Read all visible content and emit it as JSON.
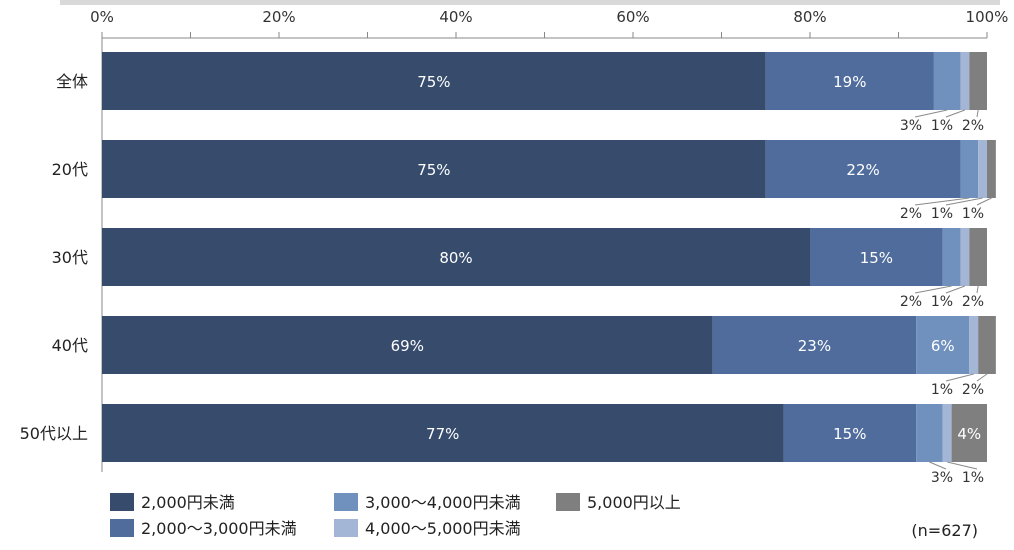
{
  "chart_data": {
    "type": "bar",
    "orientation": "horizontal",
    "stacked": true,
    "categories": [
      "全体",
      "20代",
      "30代",
      "40代",
      "50代以上"
    ],
    "series": [
      {
        "name": "2,000円未満",
        "color": "#374C6D",
        "values": [
          75,
          75,
          80,
          69,
          77
        ],
        "labels": [
          "75%",
          "75%",
          "80%",
          "69%",
          "77%"
        ]
      },
      {
        "name": "2,000～3,000円未満",
        "color": "#4F6C9C",
        "values": [
          19,
          22,
          15,
          23,
          15
        ],
        "labels": [
          "19%",
          "22%",
          "15%",
          "23%",
          "15%"
        ]
      },
      {
        "name": "3,000～4,000円未満",
        "color": "#7090BE",
        "values": [
          3,
          2,
          2,
          6,
          3
        ],
        "labels": [
          "3%",
          "2%",
          "2%",
          "6%",
          "3%"
        ]
      },
      {
        "name": "4,000～5,000円未満",
        "color": "#A4B6D6",
        "values": [
          1,
          1,
          1,
          1,
          1
        ],
        "labels": [
          "1%",
          "1%",
          "1%",
          "1%",
          "1%"
        ]
      },
      {
        "name": "5,000円以上",
        "color": "#7F7F7F",
        "values": [
          2,
          1,
          2,
          2,
          4
        ],
        "labels": [
          "2%",
          "1%",
          "2%",
          "2%",
          "4%"
        ]
      }
    ],
    "xlim": [
      0,
      100
    ],
    "x_ticks": [
      "0%",
      "20%",
      "40%",
      "60%",
      "80%",
      "100%"
    ],
    "legend_position": "bottom-left",
    "note": "(n=627)"
  }
}
